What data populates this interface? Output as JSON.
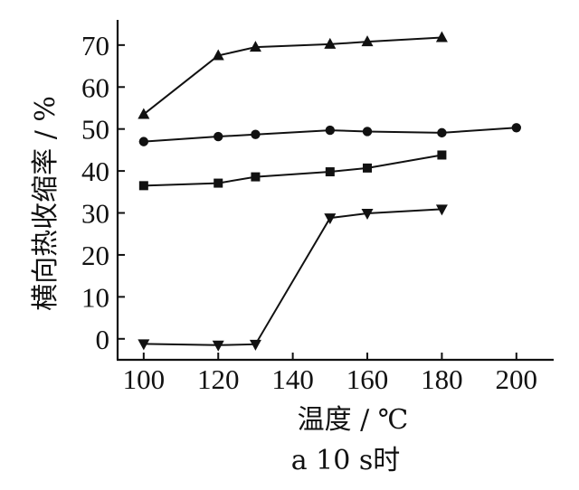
{
  "chart_data": {
    "type": "line",
    "title": "",
    "xlabel": "温度 / ℃",
    "ylabel": "横向热收缩率 / %",
    "caption": "a 10 s时",
    "xlim": [
      93,
      210
    ],
    "ylim": [
      -5,
      76
    ],
    "x_ticks": [
      100,
      120,
      140,
      160,
      180,
      200
    ],
    "y_ticks": [
      0,
      10,
      20,
      30,
      40,
      50,
      60,
      70
    ],
    "grid": false,
    "legend": "none",
    "series": [
      {
        "marker": "triangle-up",
        "x": [
          100,
          120,
          130,
          150,
          160,
          180
        ],
        "y": [
          53.5,
          67.5,
          69.5,
          70.2,
          70.8,
          71.8
        ]
      },
      {
        "marker": "circle",
        "x": [
          100,
          120,
          130,
          150,
          160,
          180,
          200
        ],
        "y": [
          47,
          48.2,
          48.7,
          49.7,
          49.4,
          49.1,
          50.3
        ]
      },
      {
        "marker": "square",
        "x": [
          100,
          120,
          130,
          150,
          160,
          180
        ],
        "y": [
          36.5,
          37.1,
          38.6,
          39.8,
          40.7,
          43.8
        ]
      },
      {
        "marker": "triangle-down",
        "x": [
          100,
          120,
          130,
          150,
          160,
          180
        ],
        "y": [
          -1.2,
          -1.5,
          -1.3,
          28.8,
          29.9,
          30.9
        ]
      }
    ]
  }
}
